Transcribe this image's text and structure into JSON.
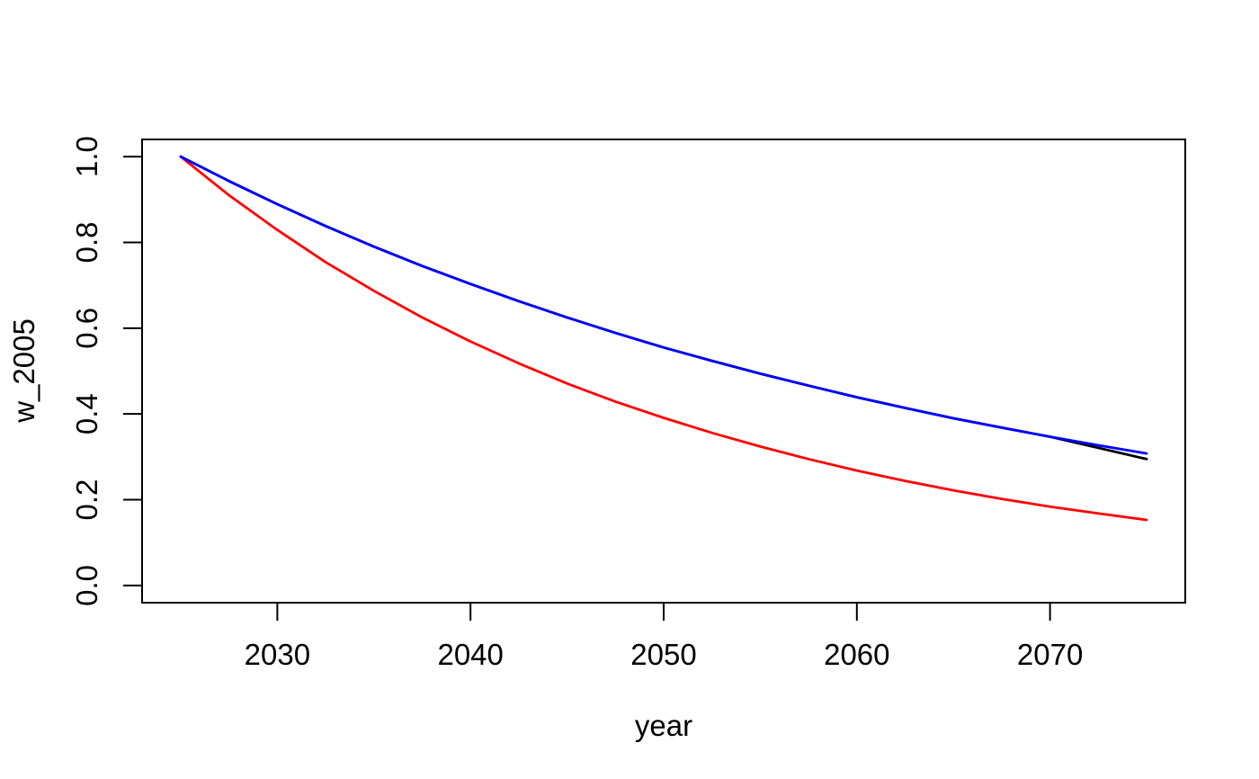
{
  "figure": {
    "background": "#ffffff",
    "axis_color": "#000000"
  },
  "chart_data": {
    "type": "line",
    "title": "",
    "xlabel": "year",
    "ylabel": "w_2005",
    "xlim": [
      2023.0,
      2077.0
    ],
    "ylim": [
      -0.04,
      1.04
    ],
    "grid": false,
    "legend": "none",
    "x_tick_values": [
      2030,
      2040,
      2050,
      2060,
      2070
    ],
    "x_tick_labels": [
      "2030",
      "2040",
      "2050",
      "2060",
      "2070"
    ],
    "y_tick_values": [
      0.0,
      0.2,
      0.4,
      0.6,
      0.8,
      1.0
    ],
    "y_tick_labels": [
      "0.0",
      "0.2",
      "0.4",
      "0.6",
      "0.8",
      "1.0"
    ],
    "x": [
      2025,
      2027.5,
      2030,
      2032.5,
      2035,
      2037.5,
      2040,
      2042.5,
      2045,
      2047.5,
      2050,
      2052.5,
      2055,
      2057.5,
      2060,
      2062.5,
      2065,
      2067.5,
      2070,
      2072.5,
      2075
    ],
    "series": [
      {
        "name": "series-black",
        "color": "#000000",
        "values": [
          1.0,
          0.943,
          0.889,
          0.838,
          0.79,
          0.745,
          0.703,
          0.663,
          0.625,
          0.589,
          0.555,
          0.524,
          0.494,
          0.466,
          0.439,
          0.414,
          0.39,
          0.368,
          0.347,
          0.321,
          0.295
        ]
      },
      {
        "name": "series-red",
        "color": "#ff0000",
        "values": [
          1.0,
          0.91,
          0.829,
          0.754,
          0.687,
          0.625,
          0.569,
          0.518,
          0.471,
          0.429,
          0.391,
          0.356,
          0.324,
          0.295,
          0.268,
          0.244,
          0.222,
          0.202,
          0.184,
          0.168,
          0.153
        ]
      },
      {
        "name": "series-blue",
        "color": "#0000ff",
        "values": [
          1.0,
          0.943,
          0.889,
          0.838,
          0.79,
          0.745,
          0.703,
          0.663,
          0.625,
          0.589,
          0.555,
          0.524,
          0.494,
          0.466,
          0.439,
          0.414,
          0.39,
          0.368,
          0.347,
          0.327,
          0.308
        ]
      }
    ]
  }
}
